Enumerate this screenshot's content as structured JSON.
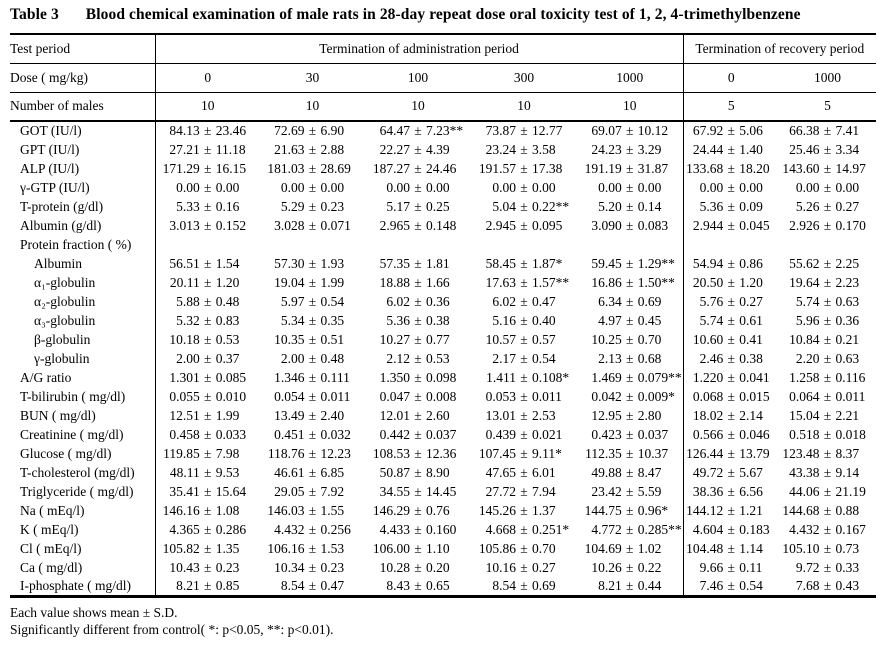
{
  "title": {
    "prefix": "Table 3",
    "text": "Blood chemical examination of male rats in 28-day repeat dose oral toxicity test of 1, 2, 4-trimethylbenzene"
  },
  "table": {
    "header": {
      "test_period_label": "Test period",
      "admin_period_label": "Termination of administration period",
      "recovery_period_label": "Termination of recovery period",
      "dose_label": "Dose ( mg/kg)",
      "doses": [
        "0",
        "30",
        "100",
        "300",
        "1000",
        "0",
        "1000"
      ],
      "n_label": "Number of males",
      "n_values": [
        "10",
        "10",
        "10",
        "10",
        "10",
        "5",
        "5"
      ]
    },
    "rows": [
      {
        "label": "GOT (IU/l)",
        "indent": 0,
        "values": [
          "84.13 ± 23.46",
          "72.69 ± 6.90",
          "64.47 ± 7.23**",
          "73.87 ± 12.77",
          "69.07 ± 10.12",
          "67.92 ± 5.06",
          "66.38 ± 7.41"
        ]
      },
      {
        "label": "GPT (IU/l)",
        "indent": 0,
        "values": [
          "27.21 ± 11.18",
          "21.63 ± 2.88",
          "22.27 ± 4.39",
          "23.24 ± 3.58",
          "24.23 ± 3.29",
          "24.44 ± 1.40",
          "25.46 ± 3.34"
        ]
      },
      {
        "label": "ALP (IU/l)",
        "indent": 0,
        "values": [
          "171.29 ± 16.15",
          "181.03 ± 28.69",
          "187.27 ± 24.46",
          "191.57 ± 17.38",
          "191.19 ± 31.87",
          "133.68 ± 18.20",
          "143.60 ± 14.97"
        ]
      },
      {
        "label": "γ-GTP (IU/l)",
        "indent": 0,
        "values": [
          "0.00 ± 0.00",
          "0.00 ± 0.00",
          "0.00 ± 0.00",
          "0.00 ± 0.00",
          "0.00 ± 0.00",
          "0.00 ± 0.00",
          "0.00 ± 0.00"
        ]
      },
      {
        "label": "T-protein (g/dl)",
        "indent": 0,
        "values": [
          "5.33 ± 0.16",
          "5.29 ± 0.23",
          "5.17 ± 0.25",
          "5.04 ± 0.22**",
          "5.20 ± 0.14",
          "5.36 ± 0.09",
          "5.26 ± 0.27"
        ]
      },
      {
        "label": "Albumin (g/dl)",
        "indent": 0,
        "values": [
          "3.013 ± 0.152",
          "3.028 ± 0.071",
          "2.965 ± 0.148",
          "2.945 ± 0.095",
          "3.090 ± 0.083",
          "2.944 ± 0.045",
          "2.926 ± 0.170"
        ]
      },
      {
        "label": "Protein fraction ( %)",
        "indent": 0,
        "values": [
          "",
          "",
          "",
          "",
          "",
          "",
          ""
        ]
      },
      {
        "label": "Albumin",
        "indent": 1,
        "values": [
          "56.51 ± 1.54",
          "57.30 ± 1.93",
          "57.35 ± 1.81",
          "58.45 ± 1.87*",
          "59.45 ± 1.29**",
          "54.94 ± 0.86",
          "55.62 ± 2.25"
        ]
      },
      {
        "label": "α₁-globulin",
        "indent": 1,
        "values": [
          "20.11 ± 1.20",
          "19.04 ± 1.99",
          "18.88 ± 1.66",
          "17.63 ± 1.57**",
          "16.86 ± 1.50**",
          "20.50 ± 1.20",
          "19.64 ± 2.23"
        ]
      },
      {
        "label": "α₂-globulin",
        "indent": 1,
        "values": [
          "5.88 ± 0.48",
          "5.97 ± 0.54",
          "6.02 ± 0.36",
          "6.02 ± 0.47",
          "6.34 ± 0.69",
          "5.76 ± 0.27",
          "5.74 ± 0.63"
        ]
      },
      {
        "label": "α₃-globulin",
        "indent": 1,
        "values": [
          "5.32 ± 0.83",
          "5.34 ± 0.35",
          "5.36 ± 0.38",
          "5.16 ± 0.40",
          "4.97 ± 0.45",
          "5.74 ± 0.61",
          "5.96 ± 0.36"
        ]
      },
      {
        "label": "β-globulin",
        "indent": 1,
        "values": [
          "10.18 ± 0.53",
          "10.35 ± 0.51",
          "10.27 ± 0.77",
          "10.57 ± 0.57",
          "10.25 ± 0.70",
          "10.60 ± 0.41",
          "10.84 ± 0.21"
        ]
      },
      {
        "label": "γ-globulin",
        "indent": 1,
        "values": [
          "2.00 ± 0.37",
          "2.00 ± 0.48",
          "2.12 ± 0.53",
          "2.17 ± 0.54",
          "2.13 ± 0.68",
          "2.46 ± 0.38",
          "2.20 ± 0.63"
        ]
      },
      {
        "label": "A/G ratio",
        "indent": 0,
        "values": [
          "1.301 ± 0.085",
          "1.346 ± 0.111",
          "1.350 ± 0.098",
          "1.411 ± 0.108*",
          "1.469 ± 0.079**",
          "1.220 ± 0.041",
          "1.258 ± 0.116"
        ]
      },
      {
        "label": "T-bilirubin ( mg/dl)",
        "indent": 0,
        "values": [
          "0.055 ± 0.010",
          "0.054 ± 0.011",
          "0.047 ± 0.008",
          "0.053 ± 0.011",
          "0.042 ± 0.009*",
          "0.068 ± 0.015",
          "0.064 ± 0.011"
        ]
      },
      {
        "label": "BUN ( mg/dl)",
        "indent": 0,
        "values": [
          "12.51 ± 1.99",
          "13.49 ± 2.40",
          "12.01 ± 2.60",
          "13.01 ± 2.53",
          "12.95 ± 2.80",
          "18.02 ± 2.14",
          "15.04 ± 2.21"
        ]
      },
      {
        "label": "Creatinine ( mg/dl)",
        "indent": 0,
        "values": [
          "0.458 ± 0.033",
          "0.451 ± 0.032",
          "0.442 ± 0.037",
          "0.439 ± 0.021",
          "0.423 ± 0.037",
          "0.566 ± 0.046",
          "0.518 ± 0.018"
        ]
      },
      {
        "label": "Glucose ( mg/dl)",
        "indent": 0,
        "values": [
          "119.85 ± 7.98",
          "118.76 ± 12.23",
          "108.53 ± 12.36",
          "107.45 ± 9.11*",
          "112.35 ± 10.37",
          "126.44 ± 13.79",
          "123.48 ± 8.37"
        ]
      },
      {
        "label": "T-cholesterol (mg/dl)",
        "indent": 0,
        "values": [
          "48.11 ± 9.53",
          "46.61 ± 6.85",
          "50.87 ± 8.90",
          "47.65 ± 6.01",
          "49.88 ± 8.47",
          "49.72 ± 5.67",
          "43.38 ± 9.14"
        ]
      },
      {
        "label": "Triglyceride ( mg/dl)",
        "indent": 0,
        "values": [
          "35.41 ± 15.64",
          "29.05 ± 7.92",
          "34.55 ± 14.45",
          "27.72 ± 7.94",
          "23.42 ± 5.59",
          "38.36 ± 6.56",
          "44.06 ± 21.19"
        ]
      },
      {
        "label": "Na ( mEq/l)",
        "indent": 0,
        "values": [
          "146.16 ± 1.08",
          "146.03 ± 1.55",
          "146.29 ± 0.76",
          "145.26 ± 1.37",
          "144.75 ± 0.96*",
          "144.12 ± 1.21",
          "144.68 ± 0.88"
        ]
      },
      {
        "label": "K ( mEq/l)",
        "indent": 0,
        "values": [
          "4.365 ± 0.286",
          "4.432 ± 0.256",
          "4.433 ± 0.160",
          "4.668 ± 0.251*",
          "4.772 ± 0.285**",
          "4.604 ± 0.183",
          "4.432 ± 0.167"
        ]
      },
      {
        "label": "Cl ( mEq/l)",
        "indent": 0,
        "values": [
          "105.82 ± 1.35",
          "106.16 ± 1.53",
          "106.00 ± 1.10",
          "105.86 ± 0.70",
          "104.69 ± 1.02",
          "104.48 ± 1.14",
          "105.10 ± 0.73"
        ]
      },
      {
        "label": "Ca ( mg/dl)",
        "indent": 0,
        "values": [
          "10.43 ± 0.23",
          "10.34 ± 0.23",
          "10.28 ± 0.20",
          "10.16 ± 0.27",
          "10.26 ± 0.22",
          "9.66 ± 0.11",
          "9.72 ± 0.33"
        ]
      },
      {
        "label": "I-phosphate ( mg/dl)",
        "indent": 0,
        "values": [
          "8.21 ± 0.85",
          "8.54 ± 0.47",
          "8.43 ± 0.65",
          "8.54 ± 0.69",
          "8.21 ± 0.44",
          "7.46 ± 0.54",
          "7.68 ± 0.43"
        ]
      }
    ]
  },
  "footnotes": [
    "Each value shows mean ± S.D.",
    "Significantly different from control( *: p<0.05, **: p<0.01)."
  ]
}
